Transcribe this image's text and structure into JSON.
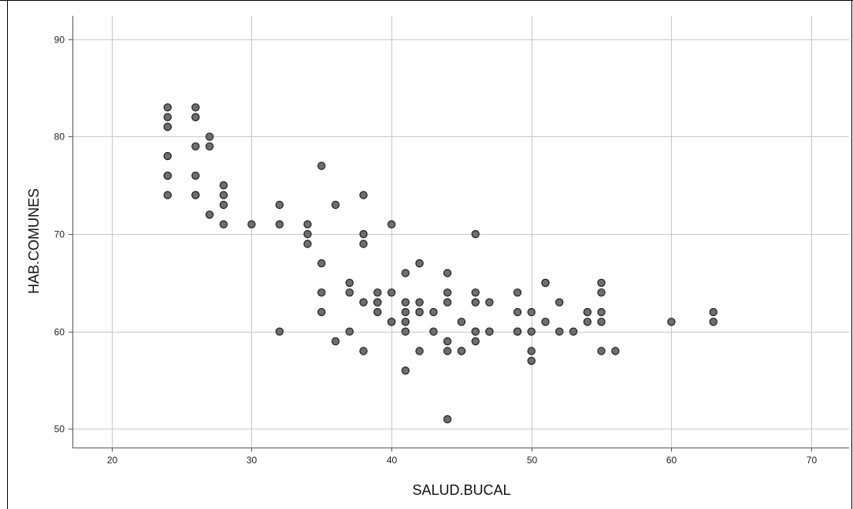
{
  "chart_data": {
    "type": "scatter",
    "xlabel": "SALUD.BUCAL",
    "ylabel": "HAB.COMUNES",
    "xlim": [
      17.2,
      72.7
    ],
    "ylim": [
      48.1,
      92.4
    ],
    "xticks": [
      20,
      30,
      40,
      50,
      60,
      70
    ],
    "yticks": [
      50,
      60,
      70,
      80,
      90
    ],
    "grid": true,
    "legend": "none",
    "point_color": "#6e6e6e",
    "point_edge_color": "#222222",
    "grid_color": "#c8c8c8",
    "points": [
      [
        24,
        83
      ],
      [
        24,
        82
      ],
      [
        24,
        81
      ],
      [
        24,
        81
      ],
      [
        24,
        78
      ],
      [
        24,
        76
      ],
      [
        24,
        76
      ],
      [
        24,
        74
      ],
      [
        26,
        83
      ],
      [
        26,
        82
      ],
      [
        26,
        82
      ],
      [
        26,
        79
      ],
      [
        26,
        76
      ],
      [
        26,
        74
      ],
      [
        26,
        74
      ],
      [
        27,
        80
      ],
      [
        27,
        79
      ],
      [
        27,
        72
      ],
      [
        28,
        75
      ],
      [
        28,
        74
      ],
      [
        28,
        73
      ],
      [
        28,
        71
      ],
      [
        30,
        71
      ],
      [
        32,
        73
      ],
      [
        32,
        71
      ],
      [
        32,
        60
      ],
      [
        34,
        71
      ],
      [
        34,
        70
      ],
      [
        34,
        69
      ],
      [
        35,
        77
      ],
      [
        35,
        67
      ],
      [
        35,
        64
      ],
      [
        35,
        62
      ],
      [
        36,
        73
      ],
      [
        36,
        59
      ],
      [
        37,
        65
      ],
      [
        37,
        64
      ],
      [
        37,
        60
      ],
      [
        38,
        74
      ],
      [
        38,
        70
      ],
      [
        38,
        69
      ],
      [
        38,
        63
      ],
      [
        38,
        58
      ],
      [
        39,
        64
      ],
      [
        39,
        63
      ],
      [
        39,
        63
      ],
      [
        39,
        62
      ],
      [
        40,
        71
      ],
      [
        40,
        64
      ],
      [
        40,
        61
      ],
      [
        40,
        61
      ],
      [
        41,
        66
      ],
      [
        41,
        63
      ],
      [
        41,
        62
      ],
      [
        41,
        61
      ],
      [
        41,
        60
      ],
      [
        41,
        56
      ],
      [
        42,
        67
      ],
      [
        42,
        67
      ],
      [
        42,
        63
      ],
      [
        42,
        62
      ],
      [
        42,
        62
      ],
      [
        42,
        58
      ],
      [
        43,
        62
      ],
      [
        43,
        60
      ],
      [
        44,
        66
      ],
      [
        44,
        64
      ],
      [
        44,
        63
      ],
      [
        44,
        59
      ],
      [
        44,
        58
      ],
      [
        44,
        51
      ],
      [
        45,
        61
      ],
      [
        45,
        58
      ],
      [
        45,
        58
      ],
      [
        46,
        70
      ],
      [
        46,
        64
      ],
      [
        46,
        63
      ],
      [
        46,
        60
      ],
      [
        46,
        60
      ],
      [
        46,
        59
      ],
      [
        47,
        63
      ],
      [
        47,
        60
      ],
      [
        47,
        60
      ],
      [
        49,
        64
      ],
      [
        49,
        62
      ],
      [
        49,
        60
      ],
      [
        49,
        60
      ],
      [
        50,
        62
      ],
      [
        50,
        60
      ],
      [
        50,
        58
      ],
      [
        50,
        57
      ],
      [
        51,
        65
      ],
      [
        51,
        65
      ],
      [
        51,
        61
      ],
      [
        52,
        63
      ],
      [
        52,
        60
      ],
      [
        53,
        60
      ],
      [
        54,
        62
      ],
      [
        54,
        62
      ],
      [
        54,
        61
      ],
      [
        55,
        65
      ],
      [
        55,
        64
      ],
      [
        55,
        62
      ],
      [
        55,
        61
      ],
      [
        55,
        58
      ],
      [
        56,
        58
      ],
      [
        60,
        61
      ],
      [
        63,
        62
      ],
      [
        63,
        61
      ]
    ]
  }
}
